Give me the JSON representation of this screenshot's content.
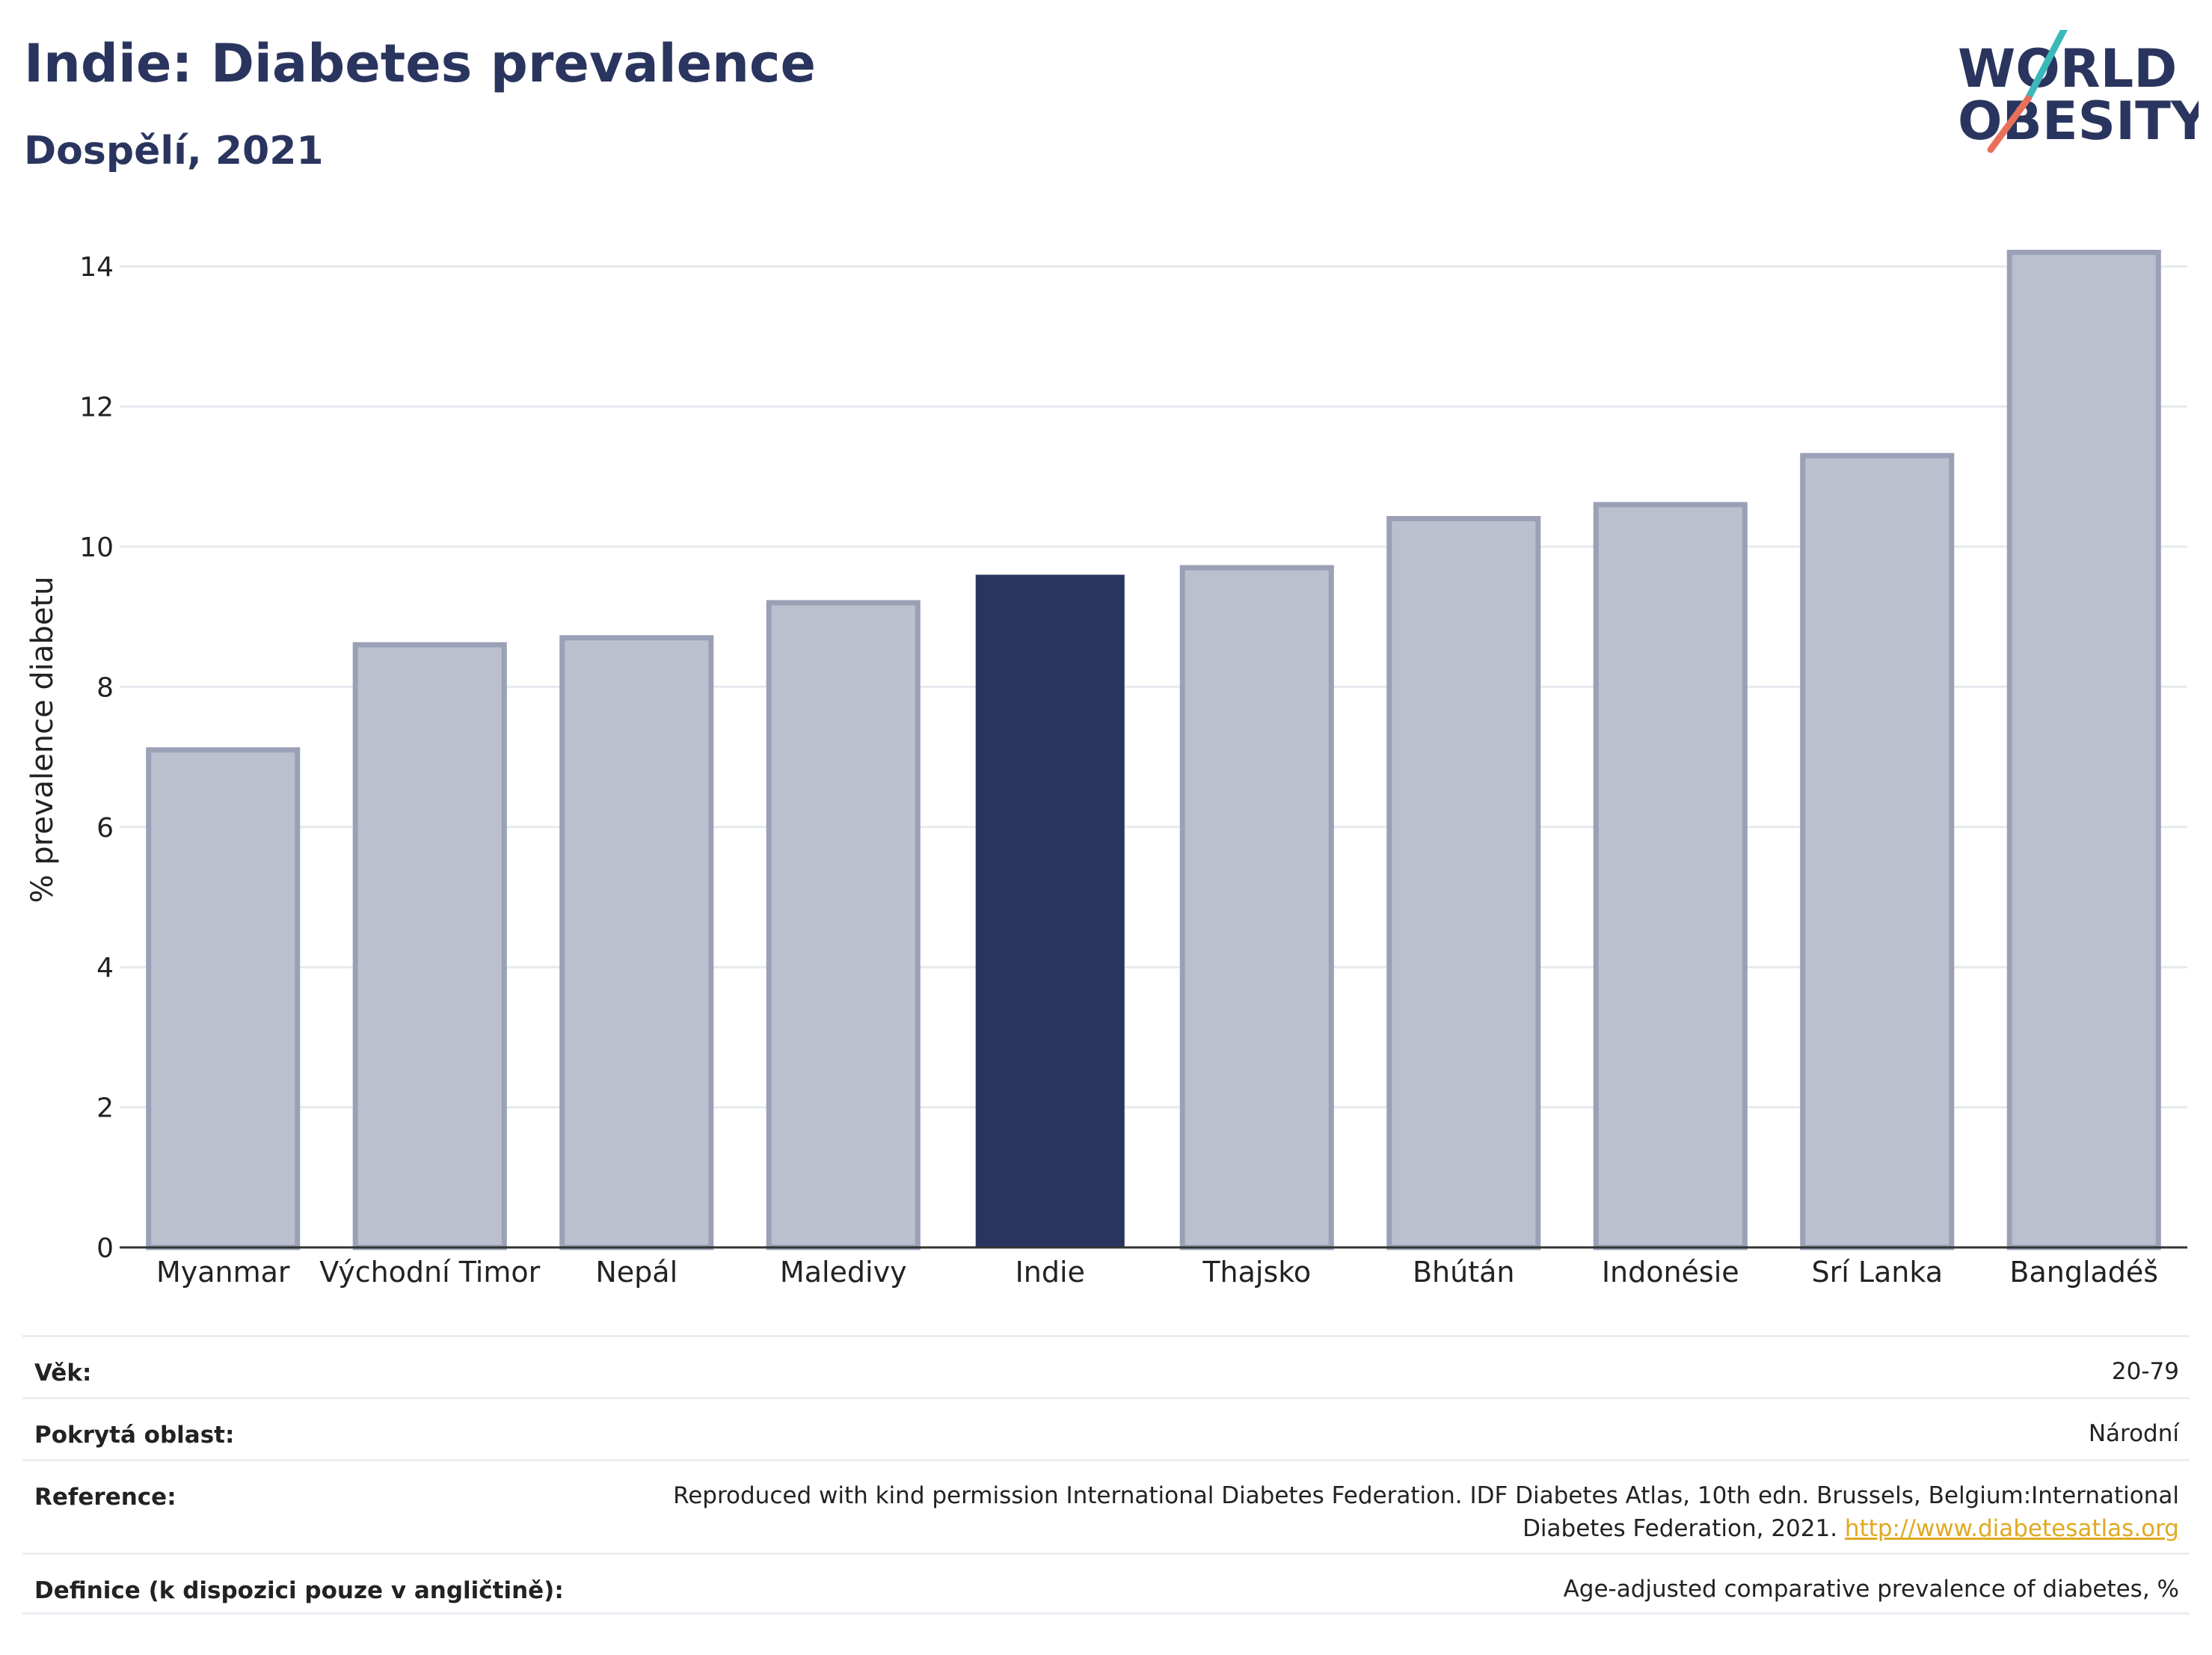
{
  "header": {
    "title": "Indie: Diabetes prevalence",
    "subtitle": "Dospělí, 2021"
  },
  "logo": {
    "line1": "WORLD",
    "line2": "OBESITY",
    "colors": {
      "text": "#2a355f",
      "slash_teal": "#3bb8b8",
      "slash_coral": "#e8705a"
    }
  },
  "chart_data": {
    "type": "bar",
    "ylabel": "% prevalence diabetu",
    "xlabel": "",
    "ylim": [
      0,
      14.6
    ],
    "yticks": [
      0,
      2,
      4,
      6,
      8,
      10,
      12,
      14
    ],
    "grid": true,
    "categories": [
      "Myanmar",
      "Východní Timor",
      "Nepál",
      "Maledivy",
      "Indie",
      "Thajsko",
      "Bhútán",
      "Indonésie",
      "Srí Lanka",
      "Bangladéš"
    ],
    "values": [
      7.1,
      8.6,
      8.7,
      9.2,
      9.6,
      9.7,
      10.4,
      10.6,
      11.3,
      14.2
    ],
    "highlight": "Indie",
    "colors": {
      "default_fill": "#bcc0ce",
      "default_stroke": "#9aa0b6",
      "highlight_fill": "#2a355f"
    }
  },
  "info_table": {
    "rows": [
      {
        "label": "Věk:",
        "value": "20-79"
      },
      {
        "label": "Pokrytá oblast:",
        "value": "Národní"
      },
      {
        "label": "Reference:",
        "value": "Reproduced with kind permission International Diabetes Federation.  IDF Diabetes Atlas, 10th edn. Brussels, Belgium:International Diabetes Federation, 2021.",
        "link": "http://www.diabetesatlas.org"
      },
      {
        "label": "Definice (k dispozici pouze v angličtině):",
        "value": "Age-adjusted comparative prevalence of diabetes, %"
      }
    ]
  }
}
